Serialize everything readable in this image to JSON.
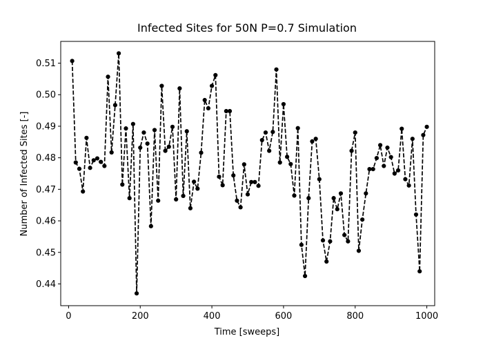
{
  "chart_data": {
    "type": "line",
    "title": "Infected Sites for 50N P=0.7 Simulation",
    "xlabel": "Time [sweeps]",
    "ylabel": "Number of Infected Sites [-]",
    "xlim": [
      -22,
      1022
    ],
    "ylim": [
      0.4331,
      0.5169
    ],
    "xticks": [
      0,
      200,
      400,
      600,
      800,
      1000
    ],
    "yticks": [
      0.44,
      0.45,
      0.46,
      0.47,
      0.48,
      0.49,
      0.5,
      0.51
    ],
    "ytick_labels": [
      "0.44",
      "0.45",
      "0.46",
      "0.47",
      "0.48",
      "0.49",
      "0.50",
      "0.51"
    ],
    "grid": false,
    "series": [
      {
        "style": "black dashed line with circle markers",
        "color": "#000000",
        "x": [
          10,
          20,
          30,
          40,
          50,
          60,
          70,
          80,
          90,
          100,
          110,
          120,
          130,
          140,
          150,
          160,
          170,
          180,
          190,
          200,
          210,
          220,
          230,
          240,
          250,
          260,
          270,
          280,
          290,
          300,
          310,
          320,
          330,
          340,
          350,
          360,
          370,
          380,
          390,
          400,
          410,
          420,
          430,
          440,
          450,
          460,
          470,
          480,
          490,
          500,
          510,
          520,
          530,
          540,
          550,
          560,
          570,
          580,
          590,
          600,
          610,
          620,
          630,
          640,
          650,
          660,
          670,
          680,
          690,
          700,
          710,
          720,
          730,
          740,
          750,
          760,
          770,
          780,
          790,
          800,
          810,
          820,
          830,
          840,
          850,
          860,
          870,
          880,
          890,
          900,
          910,
          920,
          930,
          940,
          950,
          960,
          970,
          980,
          990,
          1000
        ],
        "y": [
          0.5107,
          0.4785,
          0.4765,
          0.4693,
          0.4863,
          0.4768,
          0.4792,
          0.4798,
          0.4787,
          0.4774,
          0.5057,
          0.4817,
          0.4967,
          0.5131,
          0.4715,
          0.4893,
          0.4672,
          0.4907,
          0.437,
          0.4832,
          0.488,
          0.4845,
          0.4583,
          0.4888,
          0.4664,
          0.5028,
          0.4822,
          0.4835,
          0.4898,
          0.4668,
          0.502,
          0.4679,
          0.4884,
          0.464,
          0.4724,
          0.4702,
          0.4816,
          0.4983,
          0.4957,
          0.5028,
          0.5062,
          0.474,
          0.4713,
          0.4948,
          0.4948,
          0.4744,
          0.4664,
          0.4643,
          0.4779,
          0.4684,
          0.4723,
          0.4723,
          0.4711,
          0.4856,
          0.488,
          0.4822,
          0.4882,
          0.508,
          0.4785,
          0.497,
          0.4803,
          0.478,
          0.468,
          0.4894,
          0.4524,
          0.4425,
          0.4672,
          0.4852,
          0.486,
          0.4732,
          0.4538,
          0.4471,
          0.4535,
          0.4672,
          0.4637,
          0.4687,
          0.4555,
          0.4535,
          0.4822,
          0.488,
          0.4505,
          0.4604,
          0.4687,
          0.4764,
          0.4764,
          0.4799,
          0.484,
          0.4774,
          0.4832,
          0.4802,
          0.475,
          0.476,
          0.4892,
          0.4732,
          0.4712,
          0.486,
          0.462,
          0.444,
          0.4872,
          0.4898
        ]
      }
    ]
  }
}
